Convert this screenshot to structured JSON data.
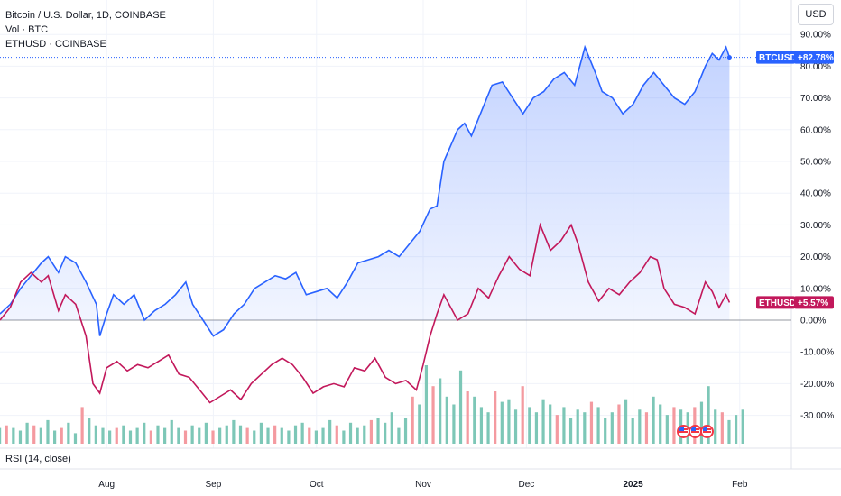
{
  "legend": {
    "main_symbol": "Bitcoin / U.S. Dollar, 1D, COINBASE",
    "volume": "Vol · BTC",
    "compare_symbol": "ETHUSD · COINBASE"
  },
  "toolbar": {
    "currency": "USD"
  },
  "indicator": {
    "label": "RSI (14, close)"
  },
  "colors": {
    "btc": "#2962ff",
    "eth": "#c2185b",
    "vol_up": "#7dc7b7",
    "vol_down": "#f49aa0",
    "grid": "#f0f3fa",
    "zero_line": "#9598a1"
  },
  "chart_data": {
    "type": "line",
    "y_unit": "%",
    "y_ticks": [
      "90.00%",
      "80.00%",
      "70.00%",
      "60.00%",
      "50.00%",
      "40.00%",
      "30.00%",
      "20.00%",
      "10.00%",
      "0.00%",
      "-10.00%",
      "-20.00%",
      "-30.00%"
    ],
    "ylim": [
      -35,
      95
    ],
    "x_ticks": [
      {
        "label": "Aug",
        "day": 31
      },
      {
        "label": "Sep",
        "day": 62
      },
      {
        "label": "Oct",
        "day": 92
      },
      {
        "label": "Nov",
        "day": 123
      },
      {
        "label": "Dec",
        "day": 153
      },
      {
        "label": "2025",
        "day": 184
      },
      {
        "label": "Feb",
        "day": 215
      }
    ],
    "xlim": [
      0,
      230
    ],
    "series": [
      {
        "name": "BTCUSD",
        "badge": "BTCUSD",
        "last_value_label": "+82.78%",
        "last_value": 82.78,
        "points": [
          [
            0,
            2
          ],
          [
            3,
            5
          ],
          [
            6,
            10
          ],
          [
            9,
            14
          ],
          [
            12,
            18
          ],
          [
            14,
            20
          ],
          [
            17,
            15
          ],
          [
            19,
            20
          ],
          [
            22,
            18
          ],
          [
            25,
            12
          ],
          [
            28,
            5
          ],
          [
            29,
            -5
          ],
          [
            31,
            2
          ],
          [
            33,
            8
          ],
          [
            36,
            5
          ],
          [
            39,
            8
          ],
          [
            42,
            0
          ],
          [
            45,
            3
          ],
          [
            48,
            5
          ],
          [
            51,
            8
          ],
          [
            54,
            12
          ],
          [
            56,
            5
          ],
          [
            59,
            0
          ],
          [
            62,
            -5
          ],
          [
            65,
            -3
          ],
          [
            68,
            2
          ],
          [
            71,
            5
          ],
          [
            74,
            10
          ],
          [
            77,
            12
          ],
          [
            80,
            14
          ],
          [
            83,
            13
          ],
          [
            86,
            15
          ],
          [
            89,
            8
          ],
          [
            92,
            9
          ],
          [
            95,
            10
          ],
          [
            98,
            7
          ],
          [
            101,
            12
          ],
          [
            104,
            18
          ],
          [
            107,
            19
          ],
          [
            110,
            20
          ],
          [
            113,
            22
          ],
          [
            116,
            20
          ],
          [
            119,
            24
          ],
          [
            122,
            28
          ],
          [
            125,
            35
          ],
          [
            127,
            36
          ],
          [
            129,
            50
          ],
          [
            131,
            55
          ],
          [
            133,
            60
          ],
          [
            135,
            62
          ],
          [
            137,
            58
          ],
          [
            140,
            66
          ],
          [
            143,
            74
          ],
          [
            146,
            75
          ],
          [
            149,
            70
          ],
          [
            152,
            65
          ],
          [
            155,
            70
          ],
          [
            158,
            72
          ],
          [
            161,
            76
          ],
          [
            164,
            78
          ],
          [
            167,
            74
          ],
          [
            170,
            86
          ],
          [
            173,
            78
          ],
          [
            175,
            72
          ],
          [
            178,
            70
          ],
          [
            181,
            65
          ],
          [
            184,
            68
          ],
          [
            187,
            74
          ],
          [
            190,
            78
          ],
          [
            193,
            74
          ],
          [
            196,
            70
          ],
          [
            199,
            68
          ],
          [
            202,
            72
          ],
          [
            205,
            80
          ],
          [
            207,
            84
          ],
          [
            209,
            82
          ],
          [
            211,
            86
          ],
          [
            212,
            82.78
          ]
        ]
      },
      {
        "name": "ETHUSD",
        "badge": "ETHUSD",
        "last_value_label": "+5.57%",
        "last_value": 5.57,
        "points": [
          [
            0,
            0
          ],
          [
            3,
            4
          ],
          [
            6,
            12
          ],
          [
            9,
            15
          ],
          [
            12,
            12
          ],
          [
            14,
            14
          ],
          [
            17,
            3
          ],
          [
            19,
            8
          ],
          [
            22,
            5
          ],
          [
            25,
            -5
          ],
          [
            27,
            -20
          ],
          [
            29,
            -23
          ],
          [
            31,
            -15
          ],
          [
            34,
            -13
          ],
          [
            37,
            -16
          ],
          [
            40,
            -14
          ],
          [
            43,
            -15
          ],
          [
            46,
            -13
          ],
          [
            49,
            -11
          ],
          [
            52,
            -17
          ],
          [
            55,
            -18
          ],
          [
            58,
            -22
          ],
          [
            61,
            -26
          ],
          [
            64,
            -24
          ],
          [
            67,
            -22
          ],
          [
            70,
            -25
          ],
          [
            73,
            -20
          ],
          [
            76,
            -17
          ],
          [
            79,
            -14
          ],
          [
            82,
            -12
          ],
          [
            85,
            -14
          ],
          [
            88,
            -18
          ],
          [
            91,
            -23
          ],
          [
            94,
            -21
          ],
          [
            97,
            -20
          ],
          [
            100,
            -21
          ],
          [
            103,
            -15
          ],
          [
            106,
            -16
          ],
          [
            109,
            -12
          ],
          [
            112,
            -18
          ],
          [
            115,
            -20
          ],
          [
            118,
            -19
          ],
          [
            121,
            -22
          ],
          [
            123,
            -14
          ],
          [
            125,
            -5
          ],
          [
            127,
            2
          ],
          [
            129,
            8
          ],
          [
            131,
            4
          ],
          [
            133,
            0
          ],
          [
            136,
            2
          ],
          [
            139,
            10
          ],
          [
            142,
            7
          ],
          [
            145,
            14
          ],
          [
            148,
            20
          ],
          [
            151,
            16
          ],
          [
            154,
            14
          ],
          [
            157,
            30
          ],
          [
            160,
            22
          ],
          [
            163,
            25
          ],
          [
            166,
            30
          ],
          [
            168,
            24
          ],
          [
            171,
            12
          ],
          [
            174,
            6
          ],
          [
            177,
            10
          ],
          [
            180,
            8
          ],
          [
            183,
            12
          ],
          [
            186,
            15
          ],
          [
            189,
            20
          ],
          [
            191,
            19
          ],
          [
            193,
            10
          ],
          [
            196,
            5
          ],
          [
            199,
            4
          ],
          [
            202,
            2
          ],
          [
            205,
            12
          ],
          [
            207,
            9
          ],
          [
            209,
            4
          ],
          [
            211,
            8
          ],
          [
            212,
            5.57
          ]
        ]
      }
    ],
    "volume": {
      "name": "Vol · BTC",
      "step": 2,
      "start": 0,
      "values": [
        6,
        7,
        6,
        5,
        8,
        7,
        6,
        9,
        5,
        6,
        8,
        4,
        14,
        10,
        7,
        6,
        5,
        6,
        7,
        5,
        6,
        8,
        5,
        7,
        6,
        9,
        6,
        5,
        7,
        6,
        8,
        5,
        6,
        7,
        9,
        7,
        6,
        5,
        8,
        6,
        7,
        6,
        5,
        7,
        8,
        6,
        5,
        6,
        9,
        7,
        5,
        8,
        6,
        7,
        9,
        10,
        8,
        12,
        6,
        10,
        18,
        15,
        30,
        22,
        25,
        18,
        15,
        28,
        20,
        18,
        14,
        12,
        20,
        16,
        17,
        13,
        22,
        14,
        12,
        17,
        15,
        11,
        14,
        10,
        13,
        12,
        16,
        14,
        10,
        12,
        15,
        17,
        10,
        13,
        12,
        18,
        15,
        11,
        14,
        13,
        12,
        14,
        16,
        22,
        13,
        12,
        9,
        11,
        13
      ],
      "down_indices": [
        1,
        5,
        9,
        12,
        17,
        22,
        27,
        31,
        36,
        40,
        45,
        49,
        54,
        60,
        63,
        68,
        72,
        76,
        81,
        86,
        90,
        94,
        98,
        101,
        105
      ]
    }
  }
}
